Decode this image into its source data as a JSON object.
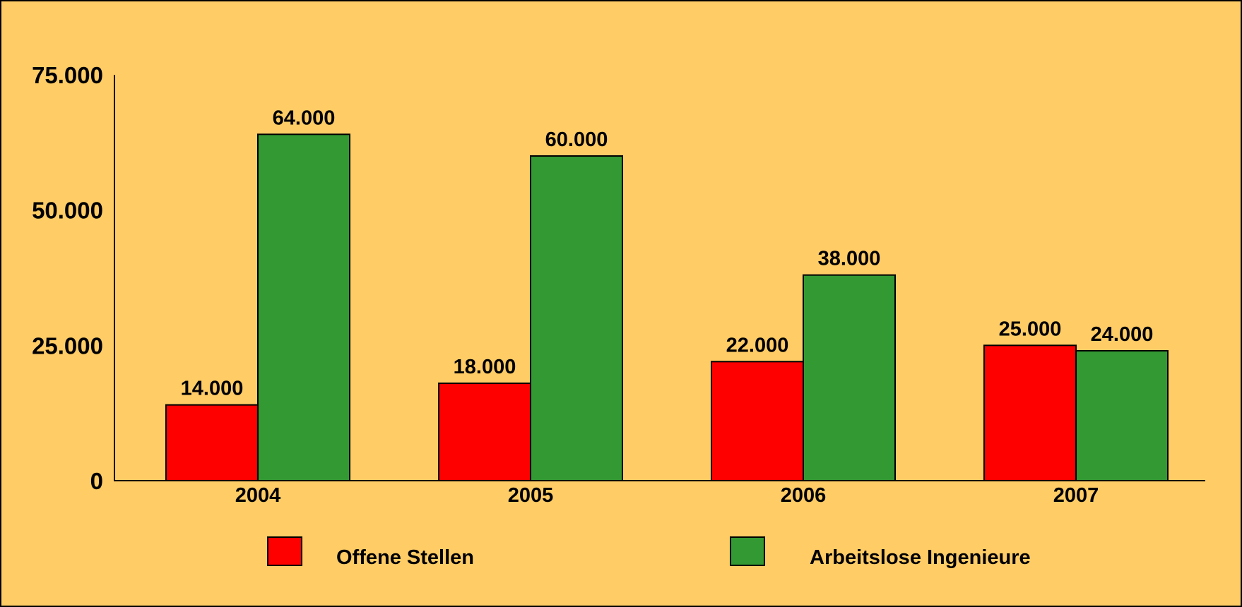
{
  "chart_data": {
    "type": "bar",
    "categories": [
      "2004",
      "2005",
      "2006",
      "2007"
    ],
    "series": [
      {
        "name": "Offene Stellen",
        "color": "#ff0000",
        "values": [
          14000,
          18000,
          22000,
          25000
        ],
        "labels": [
          "14.000",
          "18.000",
          "22.000",
          "25.000"
        ]
      },
      {
        "name": "Arbeitslose Ingenieure",
        "color": "#339933",
        "values": [
          64000,
          60000,
          38000,
          24000
        ],
        "labels": [
          "64.000",
          "60.000",
          "38.000",
          "24.000"
        ]
      }
    ],
    "y_ticks": [
      {
        "value": 0,
        "label": "0"
      },
      {
        "value": 25000,
        "label": "25.000"
      },
      {
        "value": 50000,
        "label": "50.000"
      },
      {
        "value": 75000,
        "label": "75.000"
      }
    ],
    "ylim": [
      0,
      75000
    ],
    "grid": false,
    "legend_position": "bottom",
    "background_color": "#ffcc66",
    "title": "",
    "xlabel": "",
    "ylabel": ""
  }
}
